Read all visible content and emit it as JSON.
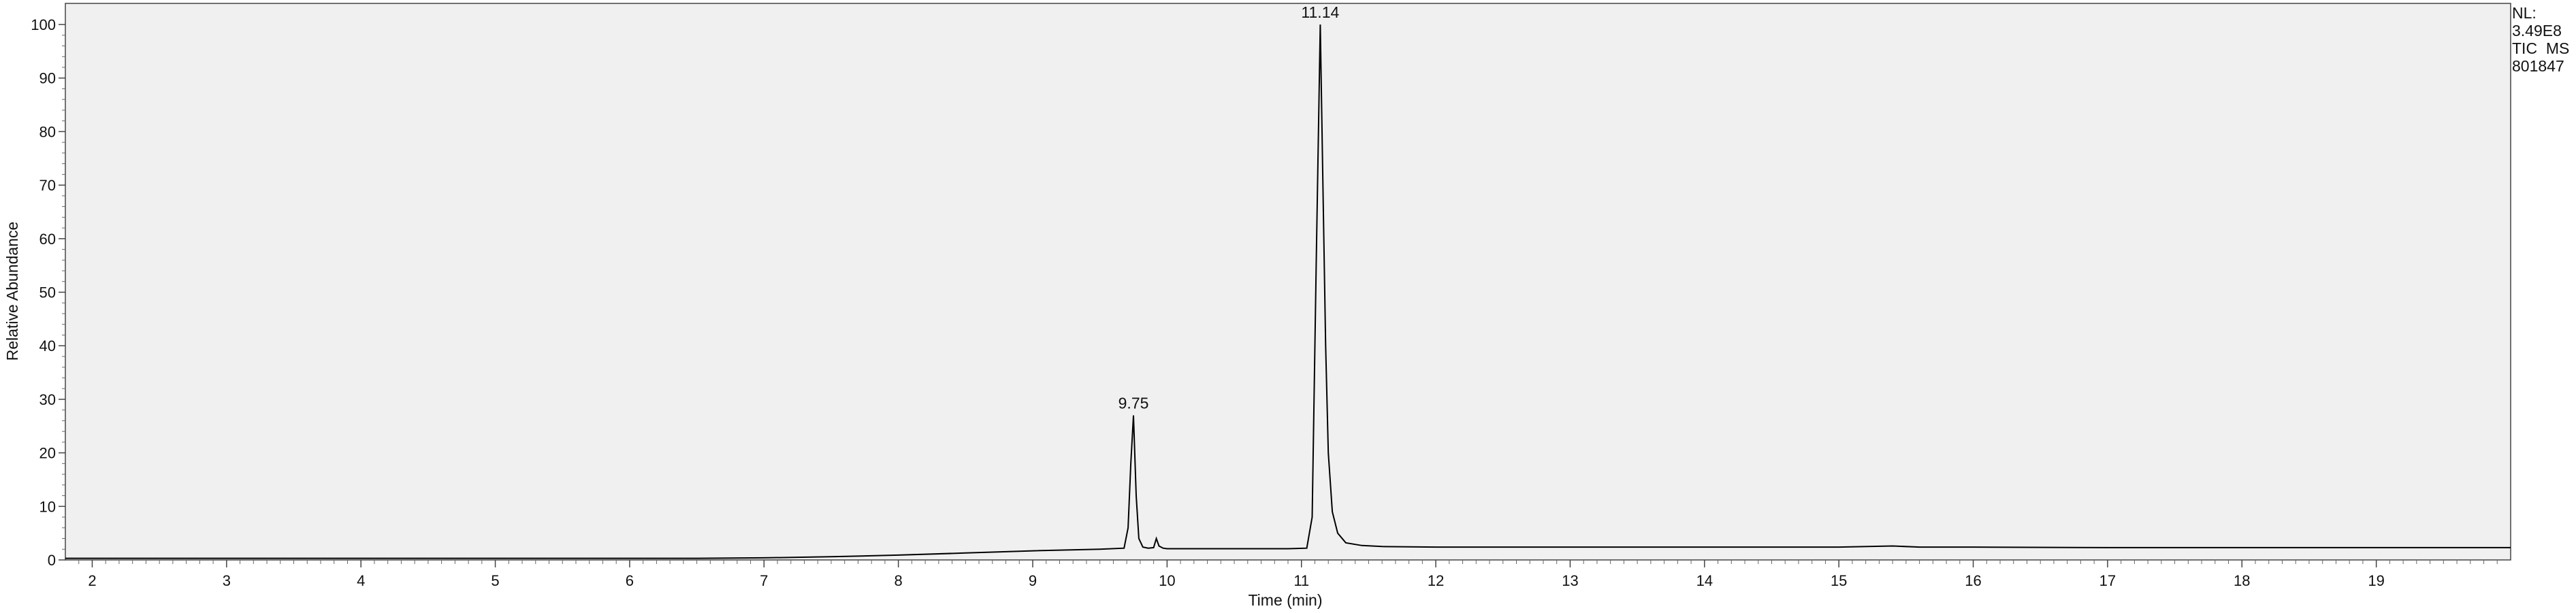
{
  "chart_data": {
    "type": "line",
    "xlabel": "Time (min)",
    "ylabel": "Relative Abundance",
    "xlim": [
      1.8,
      20.0
    ],
    "ylim": [
      0,
      100
    ],
    "x_ticks": [
      2,
      3,
      4,
      5,
      6,
      7,
      8,
      9,
      10,
      11,
      12,
      13,
      14,
      15,
      16,
      17,
      18,
      19
    ],
    "y_ticks": [
      0,
      10,
      20,
      30,
      40,
      50,
      60,
      70,
      80,
      90,
      100
    ],
    "peak_annotations": [
      {
        "label": "9.75",
        "x": 9.75,
        "y": 27
      },
      {
        "label": "11.14",
        "x": 11.14,
        "y": 100
      }
    ],
    "info_box": {
      "lines": [
        "NL:",
        "3.49E8",
        "TIC  MS",
        "801847"
      ]
    },
    "series": [
      {
        "color": "#000000",
        "x": [
          1.8,
          2.5,
          3.5,
          4.5,
          5.5,
          6.5,
          7.0,
          7.5,
          8.0,
          8.5,
          9.0,
          9.5,
          9.68,
          9.71,
          9.73,
          9.75,
          9.77,
          9.79,
          9.82,
          9.86,
          9.9,
          9.92,
          9.94,
          9.97,
          10.0,
          10.3,
          10.6,
          10.9,
          11.04,
          11.08,
          11.11,
          11.14,
          11.16,
          11.18,
          11.2,
          11.23,
          11.27,
          11.33,
          11.45,
          11.6,
          12.0,
          13.0,
          14.0,
          15.0,
          15.4,
          15.6,
          16.0,
          17.0,
          18.0,
          19.0,
          20.0
        ],
        "y": [
          0.3,
          0.3,
          0.3,
          0.3,
          0.3,
          0.3,
          0.4,
          0.6,
          0.9,
          1.3,
          1.7,
          2.0,
          2.2,
          6,
          18,
          27,
          12,
          4,
          2.4,
          2.2,
          2.3,
          4.0,
          2.6,
          2.2,
          2.1,
          2.1,
          2.1,
          2.1,
          2.2,
          8,
          55,
          100,
          70,
          40,
          20,
          9,
          5,
          3.2,
          2.7,
          2.5,
          2.4,
          2.4,
          2.4,
          2.4,
          2.6,
          2.4,
          2.4,
          2.3,
          2.3,
          2.3,
          2.3
        ]
      }
    ]
  }
}
